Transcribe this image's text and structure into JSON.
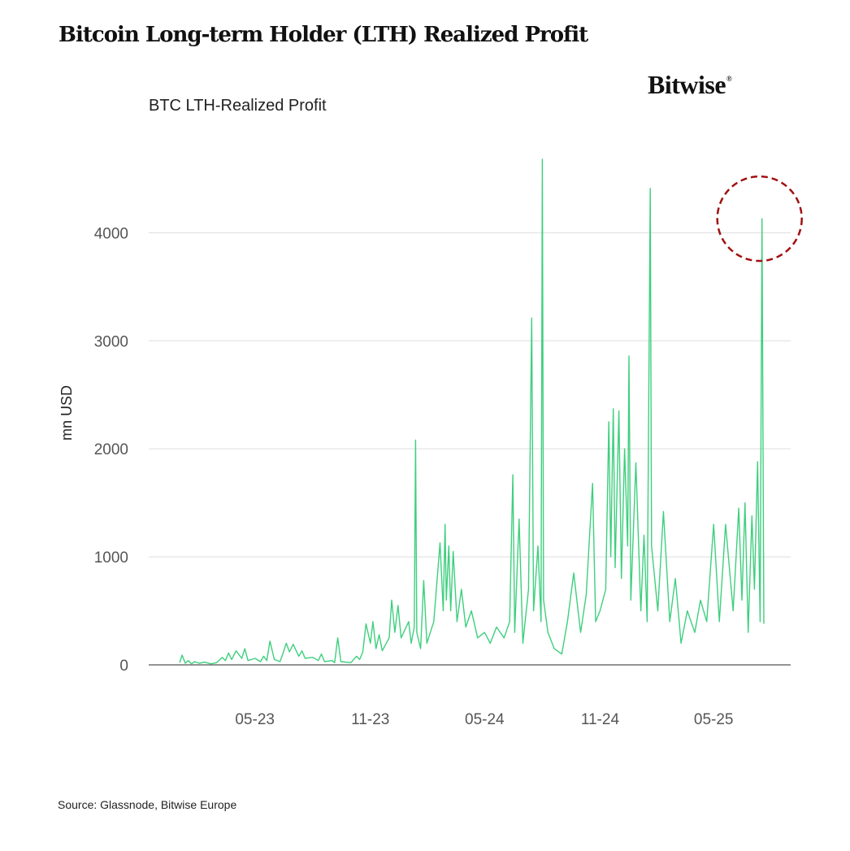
{
  "title": "Bitcoin Long-term Holder (LTH) Realized Profit",
  "logo": "Bitwise",
  "source": "Source: Glassnode, Bitwise Europe",
  "colors": {
    "line": "#3ecf7e",
    "grid": "#dddddd",
    "annotation": "#a01010"
  },
  "chart_data": {
    "type": "line",
    "title": "BTC LTH-Realized Profit",
    "xlabel": "",
    "ylabel": "mn USD",
    "x_range": [
      "2023-01-01",
      "2025-07-20"
    ],
    "ylim": [
      0,
      4800
    ],
    "yticks": [
      0,
      1000,
      2000,
      3000,
      4000
    ],
    "xticks": [
      {
        "date": "2023-05-01",
        "label": "05-23"
      },
      {
        "date": "2023-11-01",
        "label": "11-23"
      },
      {
        "date": "2024-05-01",
        "label": "05-24"
      },
      {
        "date": "2024-11-01",
        "label": "11-24"
      },
      {
        "date": "2025-05-01",
        "label": "05-25"
      }
    ],
    "grid": "horizontal",
    "annotation": {
      "type": "circle",
      "date": "2025-07-17",
      "value": 4130
    },
    "series": [
      {
        "points": [
          [
            "2023-01-01",
            20
          ],
          [
            "2023-01-05",
            90
          ],
          [
            "2023-01-10",
            15
          ],
          [
            "2023-01-15",
            40
          ],
          [
            "2023-01-20",
            10
          ],
          [
            "2023-01-25",
            30
          ],
          [
            "2023-02-01",
            15
          ],
          [
            "2023-02-10",
            25
          ],
          [
            "2023-02-20",
            10
          ],
          [
            "2023-03-01",
            20
          ],
          [
            "2023-03-10",
            70
          ],
          [
            "2023-03-15",
            40
          ],
          [
            "2023-03-20",
            110
          ],
          [
            "2023-03-25",
            50
          ],
          [
            "2023-04-01",
            130
          ],
          [
            "2023-04-10",
            60
          ],
          [
            "2023-04-15",
            150
          ],
          [
            "2023-04-20",
            40
          ],
          [
            "2023-05-01",
            60
          ],
          [
            "2023-05-10",
            30
          ],
          [
            "2023-05-15",
            80
          ],
          [
            "2023-05-20",
            40
          ],
          [
            "2023-05-25",
            220
          ],
          [
            "2023-06-01",
            50
          ],
          [
            "2023-06-10",
            30
          ],
          [
            "2023-06-15",
            110
          ],
          [
            "2023-06-20",
            200
          ],
          [
            "2023-06-25",
            120
          ],
          [
            "2023-07-01",
            190
          ],
          [
            "2023-07-10",
            80
          ],
          [
            "2023-07-15",
            130
          ],
          [
            "2023-07-20",
            60
          ],
          [
            "2023-08-01",
            70
          ],
          [
            "2023-08-10",
            40
          ],
          [
            "2023-08-15",
            100
          ],
          [
            "2023-08-20",
            30
          ],
          [
            "2023-09-01",
            40
          ],
          [
            "2023-09-05",
            20
          ],
          [
            "2023-09-10",
            250
          ],
          [
            "2023-09-15",
            30
          ],
          [
            "2023-10-01",
            20
          ],
          [
            "2023-10-10",
            80
          ],
          [
            "2023-10-15",
            50
          ],
          [
            "2023-10-20",
            120
          ],
          [
            "2023-10-25",
            380
          ],
          [
            "2023-11-01",
            200
          ],
          [
            "2023-11-05",
            400
          ],
          [
            "2023-11-10",
            150
          ],
          [
            "2023-11-15",
            280
          ],
          [
            "2023-11-20",
            130
          ],
          [
            "2023-12-01",
            250
          ],
          [
            "2023-12-05",
            600
          ],
          [
            "2023-12-10",
            300
          ],
          [
            "2023-12-15",
            550
          ],
          [
            "2023-12-20",
            250
          ],
          [
            "2024-01-01",
            400
          ],
          [
            "2024-01-05",
            200
          ],
          [
            "2024-01-10",
            350
          ],
          [
            "2024-01-12",
            2080
          ],
          [
            "2024-01-14",
            300
          ],
          [
            "2024-01-20",
            150
          ],
          [
            "2024-01-25",
            780
          ],
          [
            "2024-01-30",
            200
          ],
          [
            "2024-02-10",
            400
          ],
          [
            "2024-02-20",
            1130
          ],
          [
            "2024-02-25",
            500
          ],
          [
            "2024-02-28",
            1300
          ],
          [
            "2024-03-01",
            600
          ],
          [
            "2024-03-05",
            1100
          ],
          [
            "2024-03-08",
            500
          ],
          [
            "2024-03-12",
            1050
          ],
          [
            "2024-03-18",
            400
          ],
          [
            "2024-03-25",
            700
          ],
          [
            "2024-04-01",
            350
          ],
          [
            "2024-04-10",
            500
          ],
          [
            "2024-04-20",
            250
          ],
          [
            "2024-05-01",
            300
          ],
          [
            "2024-05-10",
            200
          ],
          [
            "2024-05-20",
            350
          ],
          [
            "2024-06-01",
            250
          ],
          [
            "2024-06-10",
            400
          ],
          [
            "2024-06-15",
            1760
          ],
          [
            "2024-06-18",
            300
          ],
          [
            "2024-06-25",
            1350
          ],
          [
            "2024-07-01",
            200
          ],
          [
            "2024-07-10",
            700
          ],
          [
            "2024-07-15",
            3210
          ],
          [
            "2024-07-18",
            500
          ],
          [
            "2024-07-25",
            1100
          ],
          [
            "2024-07-30",
            400
          ],
          [
            "2024-08-01",
            4680
          ],
          [
            "2024-08-03",
            600
          ],
          [
            "2024-08-10",
            300
          ],
          [
            "2024-08-20",
            150
          ],
          [
            "2024-09-01",
            100
          ],
          [
            "2024-09-10",
            400
          ],
          [
            "2024-09-20",
            850
          ],
          [
            "2024-10-01",
            300
          ],
          [
            "2024-10-10",
            650
          ],
          [
            "2024-10-20",
            1680
          ],
          [
            "2024-10-25",
            400
          ],
          [
            "2024-11-01",
            500
          ],
          [
            "2024-11-10",
            700
          ],
          [
            "2024-11-15",
            2250
          ],
          [
            "2024-11-18",
            1000
          ],
          [
            "2024-11-22",
            2370
          ],
          [
            "2024-11-25",
            900
          ],
          [
            "2024-12-01",
            2350
          ],
          [
            "2024-12-05",
            800
          ],
          [
            "2024-12-10",
            2000
          ],
          [
            "2024-12-15",
            1100
          ],
          [
            "2024-12-17",
            2860
          ],
          [
            "2024-12-20",
            600
          ],
          [
            "2024-12-28",
            1870
          ],
          [
            "2025-01-05",
            500
          ],
          [
            "2025-01-10",
            1200
          ],
          [
            "2025-01-15",
            400
          ],
          [
            "2025-01-20",
            4410
          ],
          [
            "2025-01-22",
            1100
          ],
          [
            "2025-02-01",
            500
          ],
          [
            "2025-02-10",
            1420
          ],
          [
            "2025-02-20",
            400
          ],
          [
            "2025-03-01",
            800
          ],
          [
            "2025-03-10",
            200
          ],
          [
            "2025-03-20",
            500
          ],
          [
            "2025-04-01",
            300
          ],
          [
            "2025-04-10",
            600
          ],
          [
            "2025-04-20",
            400
          ],
          [
            "2025-05-01",
            1300
          ],
          [
            "2025-05-10",
            400
          ],
          [
            "2025-05-20",
            1300
          ],
          [
            "2025-06-01",
            500
          ],
          [
            "2025-06-10",
            1450
          ],
          [
            "2025-06-15",
            600
          ],
          [
            "2025-06-20",
            1500
          ],
          [
            "2025-06-25",
            300
          ],
          [
            "2025-07-01",
            1380
          ],
          [
            "2025-07-05",
            700
          ],
          [
            "2025-07-10",
            1880
          ],
          [
            "2025-07-14",
            400
          ],
          [
            "2025-07-17",
            4130
          ],
          [
            "2025-07-20",
            380
          ]
        ]
      }
    ]
  }
}
